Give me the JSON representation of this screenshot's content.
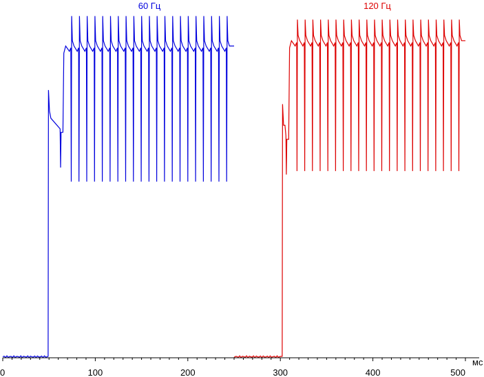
{
  "chart_data": {
    "type": "line",
    "title": "",
    "xlabel": "",
    "ylabel": "",
    "x_unit": "мс",
    "xlim": [
      0,
      500
    ],
    "ylim": [
      0,
      100
    ],
    "x_ticks": [
      0,
      100,
      200,
      300,
      400,
      500
    ],
    "grid": false,
    "legend": "labels above each series",
    "series": [
      {
        "name": "60 Гц",
        "color": "#0000dd",
        "baseline_segment": [
          0,
          49
        ],
        "rise_at": 49,
        "overshoot_peak": 76,
        "settle_level": 64,
        "settle_until": 65,
        "steady_level": 88.5,
        "steady_start": 66,
        "steady_end": 250,
        "dip_period_ms": 8.4,
        "dip_first_ms": 74,
        "dip_low": 50,
        "spike_high": 97
      },
      {
        "name": "120 Гц",
        "color": "#dd0000",
        "baseline_segment": [
          250,
          302
        ],
        "rise_at": 302,
        "overshoot_peak": 72,
        "settle_level": 62,
        "settle_until": 309,
        "steady_level": 90,
        "steady_start": 310,
        "steady_end": 500,
        "dip_period_ms": 8.33,
        "dip_first_ms": 318,
        "dip_low": 53,
        "spike_high": 96
      }
    ]
  }
}
